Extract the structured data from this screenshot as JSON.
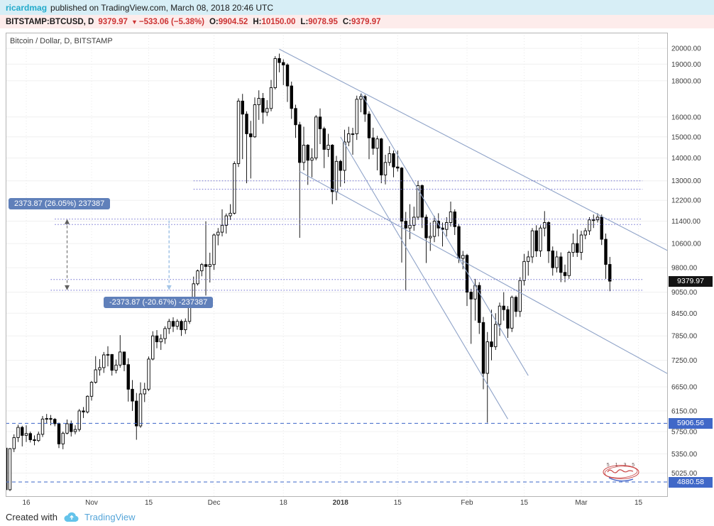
{
  "header": {
    "author": "ricardmag",
    "published_text": "published on TradingView.com, March 08, 2018 20:46 UTC"
  },
  "ohlc_bar": {
    "symbol": "BITSTAMP:BTCUSD, D",
    "last_price": "9379.97",
    "direction_icon": "▼",
    "change": "−533.06 (−5.38%)",
    "open_label": "O:",
    "open": "9904.52",
    "high_label": "H:",
    "high": "10150.00",
    "low_label": "L:",
    "low": "9078.95",
    "close_label": "C:",
    "close": "9379.97"
  },
  "chart": {
    "symbol_label": "Bitcoin / Dollar, D, BITSTAMP",
    "range_label_up": "2373.87 (26.05%) 237387",
    "range_label_down": "-2373.87 (-20.67%) -237387",
    "price_badges": {
      "current": "9379.97",
      "level1": "5906.56",
      "level2": "4880.58"
    },
    "watermark_digits": "5 1 3 5"
  },
  "footer": {
    "created_with": "Created with",
    "brand": "TradingView"
  },
  "colors": {
    "header_bg": "#d7eef6",
    "author_teal": "#22aacb",
    "ohlc_bg": "#fdeceb",
    "red": "#cc3333",
    "badge_black": "#141414",
    "badge_blue": "#4068c8",
    "label_blue": "#6080ba",
    "brand_blue": "#55a5d9",
    "cloud_blue": "#64c3ea",
    "candle_up": "#ffffff",
    "candle_down": "#000000",
    "candle_stroke": "#000000",
    "trend_line": "#8fa3c8",
    "dotted_level": "#6f6fd0",
    "dashed_level": "#3a64c8",
    "arrow_dark": "#606060",
    "arrow_light": "#a5c6e8"
  },
  "chart_data": {
    "type": "candlestick",
    "symbol": "BITSTAMP:BTCUSD",
    "interval": "D",
    "title": "Bitcoin / Dollar, D, BITSTAMP",
    "start_date": "2017-10-11",
    "axis_day_zero_index": 5,
    "y_axis": {
      "log_scale": true,
      "top_price": 21050,
      "bottom_price": 4650
    },
    "y_ticks": [
      {
        "value": 20000,
        "label": "20000.00"
      },
      {
        "value": 19000,
        "label": "19000.00"
      },
      {
        "value": 18000,
        "label": "18000.00"
      },
      {
        "value": 16000,
        "label": "16000.00"
      },
      {
        "value": 15000,
        "label": "15000.00"
      },
      {
        "value": 14000,
        "label": "14000.00"
      },
      {
        "value": 13000,
        "label": "13000.00"
      },
      {
        "value": 12200,
        "label": "12200.00"
      },
      {
        "value": 11400,
        "label": "11400.00"
      },
      {
        "value": 10600,
        "label": "10600.00"
      },
      {
        "value": 9800,
        "label": "9800.00"
      },
      {
        "value": 9050,
        "label": "9050.00"
      },
      {
        "value": 8450,
        "label": "8450.00"
      },
      {
        "value": 7850,
        "label": "7850.00"
      },
      {
        "value": 7250,
        "label": "7250.00"
      },
      {
        "value": 6650,
        "label": "6650.00"
      },
      {
        "value": 6150,
        "label": "6150.00"
      },
      {
        "value": 5750,
        "label": "5750.00"
      },
      {
        "value": 5350,
        "label": "5350.00"
      },
      {
        "value": 5025,
        "label": "5025.00"
      }
    ],
    "x_ticks": [
      {
        "label": "16",
        "day": 0
      },
      {
        "label": "Nov",
        "day": 16
      },
      {
        "label": "15",
        "day": 30
      },
      {
        "label": "Dec",
        "day": 46
      },
      {
        "label": "18",
        "day": 63
      },
      {
        "label": "2018",
        "day": 77,
        "bold": true
      },
      {
        "label": "15",
        "day": 91
      },
      {
        "label": "Feb",
        "day": 108
      },
      {
        "label": "15",
        "day": 122
      },
      {
        "label": "Mar",
        "day": 136
      },
      {
        "label": "15",
        "day": 150
      }
    ],
    "candles": [
      [
        5450,
        5460,
        4660,
        4760
      ],
      [
        4760,
        5450,
        4740,
        5440
      ],
      [
        5440,
        5700,
        5380,
        5640
      ],
      [
        5640,
        5880,
        5560,
        5830
      ],
      [
        5830,
        5860,
        5480,
        5680
      ],
      [
        5680,
        5870,
        5560,
        5714
      ],
      [
        5714,
        5750,
        5550,
        5600
      ],
      [
        5600,
        5680,
        5500,
        5585
      ],
      [
        5585,
        5750,
        5560,
        5700
      ],
      [
        5700,
        6050,
        5650,
        5990
      ],
      [
        5990,
        6090,
        5900,
        6000
      ],
      [
        6000,
        6070,
        5870,
        5985
      ],
      [
        5985,
        6010,
        5850,
        5900
      ],
      [
        5900,
        5920,
        5450,
        5525
      ],
      [
        5525,
        5750,
        5430,
        5720
      ],
      [
        5720,
        5980,
        5700,
        5900
      ],
      [
        5900,
        5960,
        5660,
        5750
      ],
      [
        5750,
        5870,
        5700,
        5790
      ],
      [
        5790,
        6190,
        5750,
        6150
      ],
      [
        6150,
        6230,
        6010,
        6130
      ],
      [
        6130,
        6470,
        6100,
        6450
      ],
      [
        6450,
        6780,
        6360,
        6750
      ],
      [
        6750,
        7350,
        6720,
        7030
      ],
      [
        7030,
        7280,
        6900,
        7080
      ],
      [
        7080,
        7450,
        6960,
        7380
      ],
      [
        7380,
        7590,
        7110,
        7390
      ],
      [
        7390,
        7400,
        6900,
        7020
      ],
      [
        7020,
        7270,
        6950,
        7140
      ],
      [
        7140,
        7870,
        7080,
        7450
      ],
      [
        7450,
        7460,
        7000,
        7150
      ],
      [
        7150,
        7300,
        6340,
        6600
      ],
      [
        6600,
        6800,
        6150,
        6350
      ],
      [
        6350,
        6520,
        5600,
        5857
      ],
      [
        5857,
        6750,
        5820,
        6500
      ],
      [
        6500,
        6740,
        6330,
        6600
      ],
      [
        6600,
        7340,
        6560,
        7280
      ],
      [
        7280,
        7970,
        7250,
        7850
      ],
      [
        7850,
        8000,
        7540,
        7700
      ],
      [
        7700,
        7890,
        7500,
        7780
      ],
      [
        7780,
        8100,
        7650,
        8040
      ],
      [
        8040,
        8300,
        7900,
        8230
      ],
      [
        8230,
        8340,
        7950,
        8100
      ],
      [
        8100,
        8290,
        8010,
        8230
      ],
      [
        8230,
        8280,
        7850,
        8010
      ],
      [
        8010,
        8310,
        7900,
        8230
      ],
      [
        8230,
        8790,
        8160,
        8750
      ],
      [
        8750,
        9520,
        8660,
        9300
      ],
      [
        9300,
        9740,
        9250,
        9700
      ],
      [
        9700,
        9950,
        9530,
        9900
      ],
      [
        9900,
        11395,
        8950,
        9840
      ],
      [
        9840,
        10290,
        9340,
        9900
      ],
      [
        9900,
        10950,
        9730,
        10900
      ],
      [
        10900,
        11150,
        10540,
        11000
      ],
      [
        11000,
        11850,
        10850,
        11250
      ],
      [
        11250,
        11690,
        10950,
        11600
      ],
      [
        11600,
        12050,
        11450,
        11700
      ],
      [
        11700,
        13850,
        11650,
        13750
      ],
      [
        13750,
        17000,
        13600,
        16850
      ],
      [
        16850,
        17250,
        13950,
        16150
      ],
      [
        16150,
        16300,
        12900,
        15150
      ],
      [
        15150,
        15800,
        13100,
        15000
      ],
      [
        15000,
        17050,
        14950,
        16650
      ],
      [
        16650,
        17450,
        15850,
        17000
      ],
      [
        17000,
        17300,
        15650,
        16250
      ],
      [
        16250,
        16900,
        16050,
        16450
      ],
      [
        16450,
        18050,
        16300,
        17600
      ],
      [
        17600,
        19500,
        17500,
        19350
      ],
      [
        19350,
        19666,
        18500,
        19100
      ],
      [
        19100,
        19300,
        17750,
        18950
      ],
      [
        18950,
        19050,
        16800,
        17700
      ],
      [
        17700,
        17950,
        15900,
        16450
      ],
      [
        16450,
        16650,
        14950,
        15600
      ],
      [
        15600,
        15750,
        10800,
        13800
      ],
      [
        13800,
        15500,
        13450,
        14600
      ],
      [
        14600,
        14650,
        12830,
        13900
      ],
      [
        13900,
        14450,
        13150,
        14000
      ],
      [
        14000,
        16100,
        13900,
        16000
      ],
      [
        16000,
        16450,
        14650,
        15400
      ],
      [
        15400,
        15500,
        13550,
        14400
      ],
      [
        14400,
        15150,
        14050,
        14600
      ],
      [
        14600,
        14650,
        12050,
        12550
      ],
      [
        12550,
        14100,
        12200,
        13850
      ],
      [
        13850,
        13920,
        12750,
        13450
      ],
      [
        13450,
        15350,
        12900,
        14750
      ],
      [
        14750,
        15500,
        14550,
        15150
      ],
      [
        15150,
        15450,
        14150,
        15150
      ],
      [
        15150,
        17150,
        14850,
        16950
      ],
      [
        16950,
        17250,
        16250,
        17100
      ],
      [
        17100,
        17200,
        15750,
        16150
      ],
      [
        16150,
        16300,
        13950,
        14950
      ],
      [
        14950,
        15450,
        14150,
        14450
      ],
      [
        14450,
        15050,
        13450,
        14900
      ],
      [
        14900,
        14950,
        12900,
        13250
      ],
      [
        13250,
        14150,
        12850,
        13800
      ],
      [
        13800,
        14550,
        13650,
        14200
      ],
      [
        14200,
        14350,
        13150,
        13600
      ],
      [
        13600,
        14350,
        13400,
        13550
      ],
      [
        13550,
        13600,
        9966,
        11400
      ],
      [
        11400,
        11750,
        9100,
        11150
      ],
      [
        11150,
        12050,
        10750,
        11250
      ],
      [
        11250,
        11950,
        11050,
        11550
      ],
      [
        11550,
        13000,
        11450,
        12800
      ],
      [
        12800,
        12850,
        11150,
        11550
      ],
      [
        11550,
        11650,
        9950,
        10800
      ],
      [
        10800,
        11350,
        10350,
        10850
      ],
      [
        10850,
        11600,
        10650,
        11400
      ],
      [
        11400,
        11700,
        10850,
        11150
      ],
      [
        11150,
        11350,
        10500,
        11100
      ],
      [
        11100,
        11550,
        10850,
        11350
      ],
      [
        11350,
        12150,
        11200,
        11750
      ],
      [
        11750,
        11850,
        10900,
        11200
      ],
      [
        11200,
        11300,
        9950,
        10100
      ],
      [
        10100,
        10350,
        9750,
        10200
      ],
      [
        10200,
        10250,
        8650,
        9050
      ],
      [
        9050,
        9150,
        7650,
        8850
      ],
      [
        8850,
        9450,
        8250,
        9250
      ],
      [
        9250,
        9350,
        7900,
        8200
      ],
      [
        8200,
        8350,
        6600,
        6950
      ],
      [
        6950,
        7950,
        5920,
        7700
      ],
      [
        7700,
        8550,
        7250,
        7580
      ],
      [
        7580,
        8450,
        7500,
        8150
      ],
      [
        8150,
        8750,
        7850,
        8650
      ],
      [
        8650,
        9050,
        8250,
        8550
      ],
      [
        8550,
        8650,
        7800,
        8050
      ],
      [
        8050,
        8950,
        7950,
        8900
      ],
      [
        8900,
        8950,
        8350,
        8500
      ],
      [
        8500,
        9500,
        8350,
        9400
      ],
      [
        9400,
        10250,
        9250,
        10000
      ],
      [
        10000,
        10350,
        9550,
        10150
      ],
      [
        10150,
        11150,
        9950,
        11050
      ],
      [
        11050,
        11250,
        10150,
        10350
      ],
      [
        10350,
        11250,
        10150,
        11150
      ],
      [
        11150,
        11780,
        10850,
        11350
      ],
      [
        11350,
        11400,
        9950,
        10350
      ],
      [
        10350,
        10500,
        9550,
        9800
      ],
      [
        9800,
        10350,
        9650,
        10150
      ],
      [
        10150,
        10300,
        9350,
        9650
      ],
      [
        9650,
        9900,
        9350,
        9550
      ],
      [
        9550,
        10350,
        9450,
        10300
      ],
      [
        10300,
        10950,
        10150,
        10600
      ],
      [
        10600,
        11100,
        10150,
        10300
      ],
      [
        10300,
        11050,
        10050,
        10900
      ],
      [
        10900,
        11150,
        10750,
        11050
      ],
      [
        11050,
        11550,
        10900,
        11450
      ],
      [
        11450,
        11650,
        11150,
        11450
      ],
      [
        11450,
        11700,
        11350,
        11550
      ],
      [
        11550,
        11650,
        10550,
        10750
      ],
      [
        10750,
        10950,
        9450,
        9905
      ],
      [
        9905,
        10150,
        9079,
        9380
      ]
    ],
    "trend_lines": [
      {
        "d1": 62,
        "p1": 19950,
        "d2": 158,
        "p2": 10300
      },
      {
        "d1": 67,
        "p1": 13400,
        "d2": 158,
        "p2": 6900
      },
      {
        "d1": 82,
        "p1": 17300,
        "d2": 123,
        "p2": 6900
      },
      {
        "d1": 77,
        "p1": 15000,
        "d2": 118,
        "p2": 5990
      }
    ],
    "dotted_levels": [
      {
        "price": 13000,
        "d1": 41,
        "d2": 151
      },
      {
        "price": 12650,
        "d1": 41,
        "d2": 151
      },
      {
        "price": 11480,
        "d1": 7,
        "d2": 151
      },
      {
        "price": 11280,
        "d1": 7,
        "d2": 151
      },
      {
        "price": 9430,
        "d1": 6,
        "d2": 151
      },
      {
        "price": 9106,
        "d1": 6,
        "d2": 151
      }
    ],
    "dashed_levels": [
      {
        "price": 5906.56
      },
      {
        "price": 4880.58
      }
    ],
    "arrows": [
      {
        "day": 10,
        "p1": 11480,
        "p2": 9106,
        "style": "dark",
        "heads": "both"
      },
      {
        "day": 35,
        "p1": 11480,
        "p2": 9106,
        "style": "light",
        "heads": "down"
      }
    ]
  }
}
